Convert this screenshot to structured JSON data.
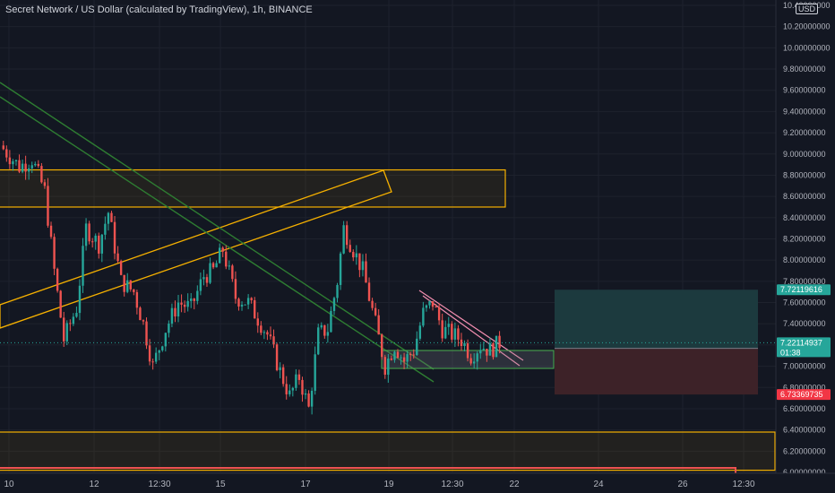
{
  "header": {
    "title": "Secret Network / US Dollar (calculated by TradingView), 1h, BINANCE",
    "currency": "USD"
  },
  "price_axis": {
    "ticks": [
      "10.40000000",
      "10.20000000",
      "10.00000000",
      "9.80000000",
      "9.60000000",
      "9.40000000",
      "9.20000000",
      "9.00000000",
      "8.80000000",
      "8.60000000",
      "8.40000000",
      "8.20000000",
      "8.00000000",
      "7.80000000",
      "7.60000000",
      "7.40000000",
      "7.20000000",
      "7.00000000",
      "6.80000000",
      "6.60000000",
      "6.40000000",
      "6.20000000",
      "6.00000000"
    ],
    "ref_min": 6.0,
    "ref_max": 10.4
  },
  "time_axis": {
    "ticks": [
      "10",
      "12",
      "12:30",
      "15",
      "17",
      "19",
      "12:30",
      "22",
      "24",
      "26",
      "12:30"
    ]
  },
  "price_tags": {
    "target": {
      "text": "7.72119616",
      "value": 7.72119616,
      "color": "#26a69a"
    },
    "current": {
      "text": "7.22114937",
      "value": 7.22114937,
      "color": "#26a69a"
    },
    "countdown": "01:38",
    "entry": {
      "text": "7.16898506",
      "value": 7.16898506,
      "color": "#434651"
    },
    "stop": {
      "text": "6.73369735",
      "value": 6.73369735,
      "color": "#f23645"
    }
  },
  "colors": {
    "bull": "#26a69a",
    "bear": "#ef5350",
    "zone": "#f5b000",
    "trend_green": "#2e7d32",
    "fill_profit": "#1c3a3e",
    "fill_loss": "#3d2228"
  },
  "chart_data": {
    "type": "candlestick",
    "symbol": "Secret Network / US Dollar",
    "interval": "1h",
    "exchange": "BINANCE",
    "ylim": [
      5.95,
      10.45
    ],
    "path_points": [
      {
        "t": 0,
        "p": 9.08
      },
      {
        "t": 6,
        "p": 8.88
      },
      {
        "t": 10,
        "p": 8.95
      },
      {
        "t": 14,
        "p": 8.65
      },
      {
        "t": 17,
        "p": 7.9
      },
      {
        "t": 20,
        "p": 7.25
      },
      {
        "t": 24,
        "p": 7.55
      },
      {
        "t": 27,
        "p": 8.3
      },
      {
        "t": 31,
        "p": 8.15
      },
      {
        "t": 34,
        "p": 8.45
      },
      {
        "t": 38,
        "p": 7.8
      },
      {
        "t": 42,
        "p": 7.7
      },
      {
        "t": 45,
        "p": 7.4
      },
      {
        "t": 48,
        "p": 7.0
      },
      {
        "t": 52,
        "p": 7.35
      },
      {
        "t": 56,
        "p": 7.6
      },
      {
        "t": 60,
        "p": 7.55
      },
      {
        "t": 64,
        "p": 7.85
      },
      {
        "t": 67,
        "p": 7.9
      },
      {
        "t": 70,
        "p": 8.1
      },
      {
        "t": 74,
        "p": 7.65
      },
      {
        "t": 78,
        "p": 7.6
      },
      {
        "t": 81,
        "p": 7.45
      },
      {
        "t": 84,
        "p": 7.3
      },
      {
        "t": 88,
        "p": 6.95
      },
      {
        "t": 91,
        "p": 6.72
      },
      {
        "t": 94,
        "p": 6.9
      },
      {
        "t": 97,
        "p": 6.6
      },
      {
        "t": 100,
        "p": 7.3
      },
      {
        "t": 103,
        "p": 7.35
      },
      {
        "t": 106,
        "p": 7.8
      },
      {
        "t": 108,
        "p": 8.3
      },
      {
        "t": 111,
        "p": 8.1
      },
      {
        "t": 114,
        "p": 7.9
      },
      {
        "t": 118,
        "p": 7.4
      },
      {
        "t": 121,
        "p": 7.0
      },
      {
        "t": 124,
        "p": 7.2
      },
      {
        "t": 127,
        "p": 7.05
      },
      {
        "t": 130,
        "p": 7.15
      },
      {
        "t": 133,
        "p": 7.5
      },
      {
        "t": 136,
        "p": 7.6
      },
      {
        "t": 139,
        "p": 7.35
      },
      {
        "t": 142,
        "p": 7.3
      },
      {
        "t": 145,
        "p": 7.25
      },
      {
        "t": 148,
        "p": 7.1
      },
      {
        "t": 151,
        "p": 7.2
      },
      {
        "t": 154,
        "p": 7.15
      },
      {
        "t": 157,
        "p": 7.22
      }
    ],
    "zones": [
      {
        "name": "",
        "top": 8.85,
        "bottom": 8.5
      },
      {
        "name": "",
        "top": 6.38,
        "bottom": 6.02
      }
    ],
    "position": {
      "target": 7.72119616,
      "entry": 7.16898506,
      "stop": 6.73369735
    }
  }
}
